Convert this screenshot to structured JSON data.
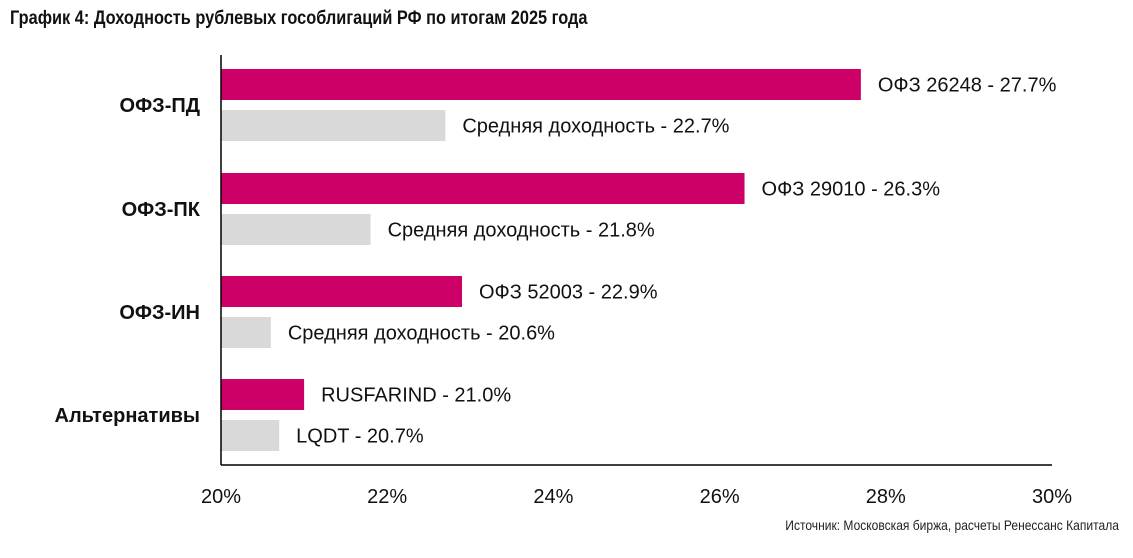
{
  "chart_data": {
    "type": "bar",
    "orientation": "horizontal",
    "title": "График 4: Доходность рублевых гособлигаций РФ по итогам 2025 года",
    "source": "Источник: Московская биржа, расчеты Ренессанс Капитала",
    "xlabel": "",
    "ylabel": "",
    "xlim": [
      20,
      30
    ],
    "x_ticks": [
      20,
      22,
      24,
      26,
      28,
      30
    ],
    "tick_suffix": "%",
    "grid": false,
    "legend": "none",
    "colors": {
      "highlight": "#cc0066",
      "average": "#d9d9d9",
      "axis": "#000000"
    },
    "categories": [
      "ОФЗ-ПД",
      "ОФЗ-ПК",
      "ОФЗ-ИН",
      "Альтернативы"
    ],
    "groups": [
      {
        "category": "ОФЗ-ПД",
        "bars": [
          {
            "label": "ОФЗ 26248 - 27.7%",
            "value": 27.7,
            "kind": "highlight"
          },
          {
            "label": "Средняя доходность - 22.7%",
            "value": 22.7,
            "kind": "average"
          }
        ]
      },
      {
        "category": "ОФЗ-ПК",
        "bars": [
          {
            "label": "ОФЗ 29010 - 26.3%",
            "value": 26.3,
            "kind": "highlight"
          },
          {
            "label": "Средняя доходность - 21.8%",
            "value": 21.8,
            "kind": "average"
          }
        ]
      },
      {
        "category": "ОФЗ-ИН",
        "bars": [
          {
            "label": "ОФЗ 52003 - 22.9%",
            "value": 22.9,
            "kind": "highlight"
          },
          {
            "label": "Средняя доходность - 20.6%",
            "value": 20.6,
            "kind": "average"
          }
        ]
      },
      {
        "category": "Альтернативы",
        "bars": [
          {
            "label": "RUSFARIND - 21.0%",
            "value": 21.0,
            "kind": "highlight"
          },
          {
            "label": "LQDT - 20.7%",
            "value": 20.7,
            "kind": "average"
          }
        ]
      }
    ]
  }
}
